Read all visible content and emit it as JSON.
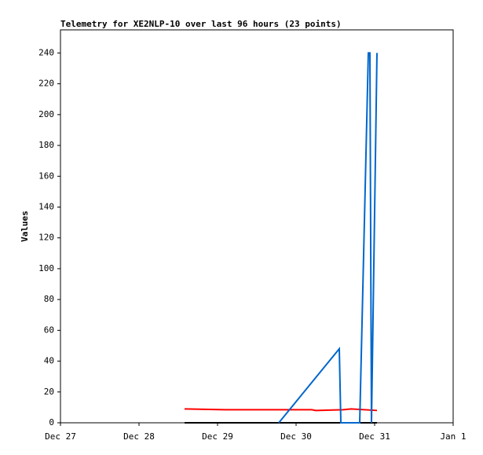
{
  "chart_data": {
    "type": "line",
    "title": "Telemetry for XE2NLP-10 over last 96 hours (23 points)",
    "y_label": "Values",
    "xlim": [
      0,
      5
    ],
    "xticks": [
      {
        "value": 0,
        "label": "Dec 27"
      },
      {
        "value": 1,
        "label": "Dec 28"
      },
      {
        "value": 2,
        "label": "Dec 29"
      },
      {
        "value": 3,
        "label": "Dec 30"
      },
      {
        "value": 4,
        "label": "Dec 31"
      },
      {
        "value": 5,
        "label": "Jan 1"
      }
    ],
    "ylim": [
      0,
      255
    ],
    "yticks": [
      0,
      20,
      40,
      60,
      80,
      100,
      120,
      140,
      160,
      180,
      200,
      220,
      240
    ],
    "series": [
      {
        "color": "#000000",
        "x": [
          1.58,
          4.03
        ],
        "values": [
          0,
          0
        ]
      },
      {
        "color": "#ff0000",
        "x": [
          1.58,
          2.1,
          3.2,
          3.25,
          3.6,
          3.7,
          4.03
        ],
        "values": [
          9,
          8.5,
          8.5,
          8,
          8.5,
          9,
          8
        ]
      },
      {
        "color": "#0066cc",
        "x": [
          2.78,
          3.55,
          3.57,
          3.81,
          3.92,
          3.94,
          3.96,
          4.03
        ],
        "values": [
          0,
          48,
          0,
          0,
          240,
          240,
          0,
          240
        ]
      }
    ]
  }
}
